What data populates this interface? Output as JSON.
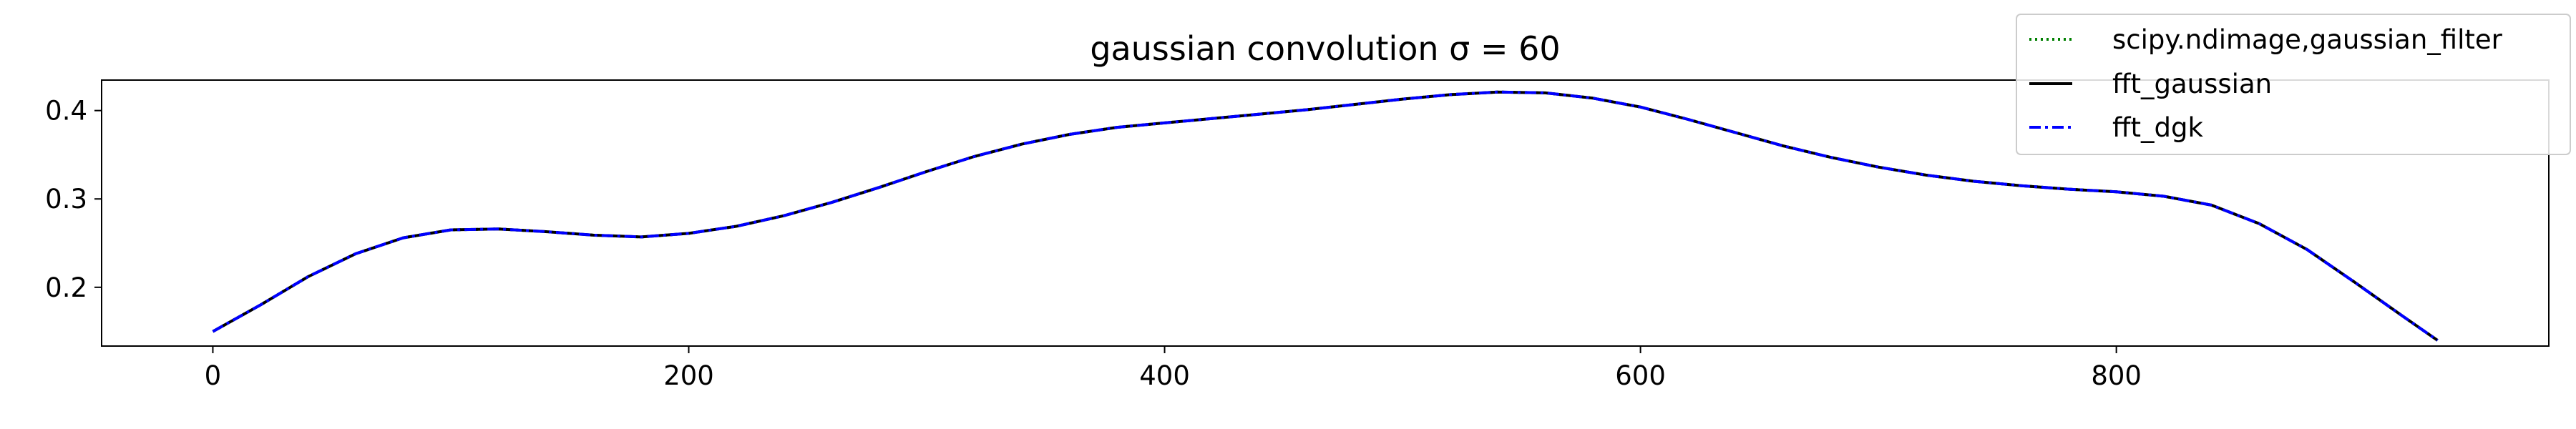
{
  "chart_data": {
    "type": "line",
    "title": "gaussian convolution σ = 60",
    "xlabel": "",
    "ylabel": "",
    "xlim": [
      -46.75,
      981.75
    ],
    "ylim": [
      0.1335,
      0.4345
    ],
    "xticks": [
      0,
      200,
      400,
      600,
      800
    ],
    "xtick_labels": [
      "0",
      "200",
      "400",
      "600",
      "800"
    ],
    "yticks": [
      0.2,
      0.3,
      0.4
    ],
    "ytick_labels": [
      "0.2",
      "0.3",
      "0.4"
    ],
    "grid": false,
    "legend_position": "top-right",
    "x": [
      0,
      20,
      40,
      60,
      80,
      100,
      120,
      140,
      160,
      180,
      200,
      220,
      240,
      260,
      280,
      300,
      320,
      340,
      360,
      380,
      400,
      420,
      440,
      460,
      480,
      500,
      520,
      540,
      560,
      580,
      600,
      620,
      640,
      660,
      680,
      700,
      720,
      740,
      760,
      780,
      800,
      820,
      840,
      860,
      880,
      900,
      920,
      935
    ],
    "series": [
      {
        "name": "scipy.ndimage,gaussian_filter",
        "color": "#008000",
        "style": "dotted",
        "values": [
          0.15,
          0.18,
          0.212,
          0.238,
          0.256,
          0.265,
          0.266,
          0.263,
          0.259,
          0.257,
          0.261,
          0.269,
          0.281,
          0.296,
          0.313,
          0.331,
          0.348,
          0.362,
          0.373,
          0.381,
          0.386,
          0.391,
          0.396,
          0.401,
          0.407,
          0.413,
          0.418,
          0.421,
          0.42,
          0.414,
          0.404,
          0.39,
          0.375,
          0.36,
          0.347,
          0.336,
          0.327,
          0.32,
          0.315,
          0.311,
          0.308,
          0.303,
          0.293,
          0.272,
          0.243,
          0.206,
          0.168,
          0.14
        ]
      },
      {
        "name": "fft_gaussian",
        "color": "#000000",
        "style": "solid",
        "values": [
          0.15,
          0.18,
          0.212,
          0.238,
          0.256,
          0.265,
          0.266,
          0.263,
          0.259,
          0.257,
          0.261,
          0.269,
          0.281,
          0.296,
          0.313,
          0.331,
          0.348,
          0.362,
          0.373,
          0.381,
          0.386,
          0.391,
          0.396,
          0.401,
          0.407,
          0.413,
          0.418,
          0.421,
          0.42,
          0.414,
          0.404,
          0.39,
          0.375,
          0.36,
          0.347,
          0.336,
          0.327,
          0.32,
          0.315,
          0.311,
          0.308,
          0.303,
          0.293,
          0.272,
          0.243,
          0.206,
          0.168,
          0.14
        ]
      },
      {
        "name": "fft_dgk",
        "color": "#0000ff",
        "style": "dashdot",
        "values": [
          0.15,
          0.18,
          0.212,
          0.238,
          0.256,
          0.265,
          0.266,
          0.263,
          0.259,
          0.257,
          0.261,
          0.269,
          0.281,
          0.296,
          0.313,
          0.331,
          0.348,
          0.362,
          0.373,
          0.381,
          0.386,
          0.391,
          0.396,
          0.401,
          0.407,
          0.413,
          0.418,
          0.421,
          0.42,
          0.414,
          0.404,
          0.39,
          0.375,
          0.36,
          0.347,
          0.336,
          0.327,
          0.32,
          0.315,
          0.311,
          0.308,
          0.303,
          0.293,
          0.272,
          0.243,
          0.206,
          0.168,
          0.14
        ]
      }
    ]
  }
}
